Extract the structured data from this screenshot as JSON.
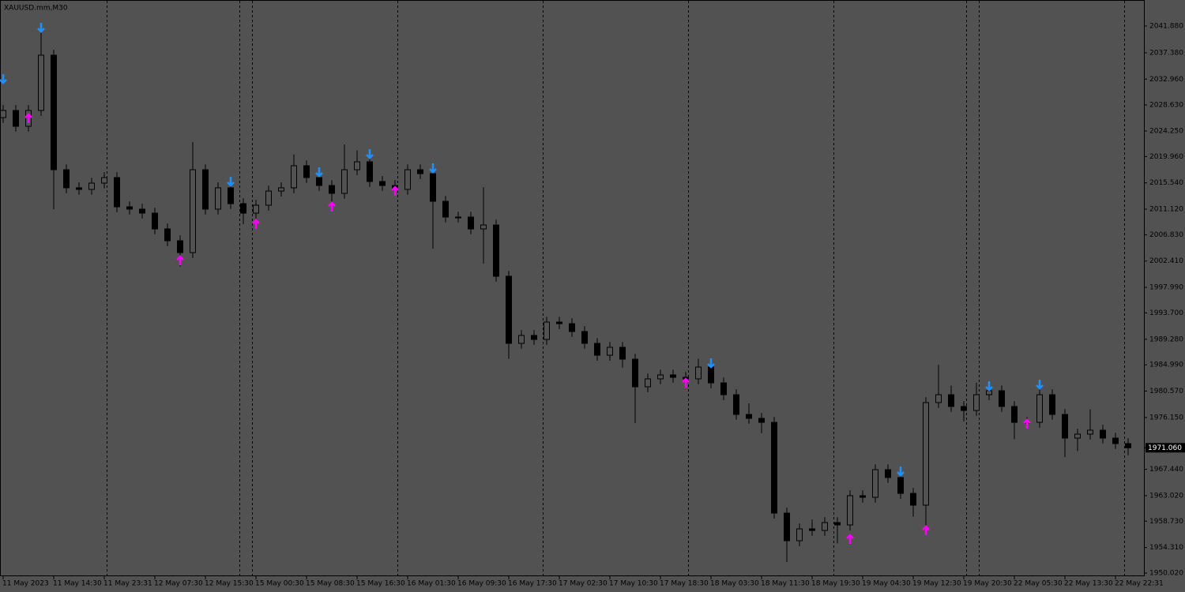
{
  "chart_data": {
    "type": "candlestick",
    "title": "XAUUSD.mm,M30",
    "categories": [
      "11 May 2023",
      null,
      null,
      null,
      "11 May 14:30",
      null,
      null,
      null,
      "11 May 23:31",
      null,
      null,
      null,
      "12 May 07:30",
      null,
      null,
      null,
      "12 May 15:30",
      null,
      null,
      null,
      "15 May 00:30",
      null,
      null,
      null,
      "15 May 08:30",
      null,
      null,
      null,
      "15 May 16:30",
      null,
      null,
      null,
      "16 May 01:30",
      null,
      null,
      null,
      "16 May 09:30",
      null,
      null,
      null,
      "16 May 17:30",
      null,
      null,
      null,
      "17 May 02:30",
      null,
      null,
      null,
      "17 May 10:30",
      null,
      null,
      null,
      "17 May 18:30",
      null,
      null,
      null,
      "18 May 03:30",
      null,
      null,
      null,
      "18 May 11:30",
      null,
      null,
      null,
      "18 May 19:30",
      null,
      null,
      null,
      "19 May 04:30",
      null,
      null,
      null,
      "19 May 12:30",
      null,
      null,
      null,
      "19 May 20:30",
      null,
      null,
      null,
      "22 May 05:30",
      null,
      null,
      null,
      "22 May 13:30",
      null,
      null,
      null,
      "22 May 22:31",
      null
    ],
    "open": [
      2026.5,
      2027.7,
      2025.04,
      2027.7,
      2036.98,
      2017.75,
      2014.71,
      2014.44,
      2015.5,
      2016.43,
      2011.52,
      2011.13,
      2010.46,
      2007.81,
      2005.82,
      2003.83,
      2017.75,
      2011.13,
      2014.71,
      2012.05,
      2010.46,
      2011.79,
      2014.17,
      2014.71,
      2018.42,
      2016.43,
      2015.1,
      2013.78,
      2017.75,
      2019.08,
      2015.77,
      2015.1,
      2014.44,
      2017.75,
      2017.09,
      2012.45,
      2009.8,
      2009.8,
      2007.81,
      2008.47,
      1999.86,
      1988.59,
      1989.92,
      1989.25,
      1992.17,
      1991.9,
      1990.58,
      1988.59,
      1986.6,
      1987.93,
      1985.94,
      1981.3,
      1982.63,
      1983.29,
      1982.89,
      1982.63,
      1984.61,
      1981.96,
      1979.97,
      1976.66,
      1976.0,
      1975.33,
      1960.09,
      1955.45,
      1957.44,
      1957.17,
      1958.5,
      1958.1,
      1963.01,
      1962.74,
      1967.38,
      1966.06,
      1963.4,
      1961.42,
      1978.65,
      1979.97,
      1977.99,
      1977.32,
      1979.97,
      1980.64,
      1977.99,
      1975.33,
      1975.33,
      1979.97,
      1976.66,
      1972.68,
      1973.35,
      1974.01,
      1972.68,
      1971.76
    ],
    "high": [
      2028.6,
      2028.6,
      2028.6,
      2041.3,
      2037.9,
      2018.65,
      2015.61,
      2016.4,
      2017.33,
      2017.33,
      2012.42,
      2012.03,
      2011.36,
      2008.71,
      2006.72,
      2022.4,
      2018.65,
      2015.61,
      2015.61,
      2012.95,
      2012.69,
      2015.07,
      2015.61,
      2020.3,
      2019.32,
      2017.33,
      2016.0,
      2022.0,
      2021.0,
      2019.98,
      2016.67,
      2016.0,
      2018.65,
      2018.65,
      2018.0,
      2013.35,
      2010.7,
      2010.7,
      2014.8,
      2009.37,
      2000.76,
      1990.82,
      1990.82,
      1993.07,
      1993.07,
      1992.8,
      1991.48,
      1989.49,
      1988.83,
      1988.83,
      1986.84,
      1983.53,
      1984.19,
      1984.19,
      1983.79,
      1986.0,
      1985.51,
      1982.86,
      1980.87,
      1978.5,
      1976.9,
      1976.23,
      1960.99,
      1958.34,
      1959.0,
      1959.4,
      1959.4,
      1963.91,
      1963.91,
      1968.28,
      1968.28,
      1966.96,
      1964.3,
      1979.55,
      1985.0,
      1981.5,
      1978.89,
      1982.0,
      1981.54,
      1981.54,
      1978.89,
      1976.23,
      1981.8,
      1980.87,
      1977.56,
      1974.25,
      1977.5,
      1974.91,
      1973.58,
      1972.66
    ],
    "low": [
      2025.6,
      2024.14,
      2024.14,
      2026.8,
      2011.1,
      2013.81,
      2013.54,
      2013.54,
      2014.6,
      2010.62,
      2010.23,
      2009.56,
      2006.91,
      2004.92,
      2001.5,
      2002.93,
      2010.23,
      2010.23,
      2011.15,
      2008.6,
      2009.56,
      2010.89,
      2013.27,
      2013.81,
      2015.53,
      2014.2,
      2012.4,
      2012.88,
      2016.85,
      2014.87,
      2014.2,
      2013.54,
      2013.54,
      2016.19,
      2004.5,
      2008.9,
      2008.9,
      2006.91,
      2002.0,
      1998.96,
      1986.0,
      1987.69,
      1988.35,
      1988.35,
      1991.0,
      1989.68,
      1987.69,
      1985.7,
      1985.7,
      1984.5,
      1975.2,
      1980.4,
      1981.73,
      1981.99,
      1981.73,
      1981.73,
      1981.06,
      1979.07,
      1975.76,
      1975.1,
      1973.5,
      1959.19,
      1951.9,
      1954.55,
      1956.27,
      1956.27,
      1955.0,
      1957.2,
      1961.84,
      1961.84,
      1965.16,
      1962.5,
      1959.5,
      1958.0,
      1977.75,
      1977.09,
      1975.5,
      1976.42,
      1979.07,
      1977.09,
      1972.5,
      1974.43,
      1974.43,
      1975.76,
      1969.5,
      1970.5,
      1972.45,
      1971.78,
      1970.86,
      1969.8
    ],
    "close": [
      2027.7,
      2025.04,
      2027.7,
      2036.98,
      2017.75,
      2014.71,
      2014.44,
      2015.5,
      2016.43,
      2011.52,
      2011.13,
      2010.46,
      2007.81,
      2005.82,
      2003.83,
      2017.75,
      2011.13,
      2014.71,
      2012.05,
      2010.46,
      2011.79,
      2014.17,
      2014.71,
      2018.42,
      2016.43,
      2015.1,
      2013.78,
      2017.75,
      2019.08,
      2015.77,
      2015.1,
      2014.44,
      2017.75,
      2017.09,
      2012.45,
      2009.8,
      2009.8,
      2007.81,
      2008.47,
      1999.86,
      1988.59,
      1989.92,
      1989.25,
      1992.17,
      1991.9,
      1990.58,
      1988.59,
      1986.6,
      1987.93,
      1985.94,
      1981.3,
      1982.63,
      1983.29,
      1982.89,
      1982.63,
      1984.61,
      1981.96,
      1979.97,
      1976.66,
      1976.0,
      1975.33,
      1960.09,
      1955.45,
      1957.44,
      1957.17,
      1958.5,
      1958.1,
      1963.01,
      1962.74,
      1967.38,
      1966.06,
      1963.4,
      1961.42,
      1978.65,
      1979.97,
      1977.99,
      1977.32,
      1979.97,
      1980.64,
      1977.99,
      1975.33,
      1975.33,
      1979.97,
      1976.66,
      1972.68,
      1973.35,
      1974.01,
      1972.68,
      1971.76,
      1971.06
    ],
    "last_price_label": "1971.060",
    "signals": [
      {
        "color": "#1e90ff",
        "direction": "down",
        "index": [
          0,
          3,
          18,
          25,
          29,
          34,
          56,
          71,
          78,
          82
        ],
        "values": [
          2032.99,
          2041.61,
          2015.77,
          2017.36,
          2020.4,
          2018.02,
          1985.28,
          1967.11,
          1981.43,
          1981.7
        ]
      },
      {
        "color": "#ff00ff",
        "direction": "up",
        "index": [
          2,
          14,
          20,
          26,
          31,
          54,
          67,
          73,
          81
        ],
        "values": [
          2026.37,
          2002.51,
          2008.61,
          2011.52,
          2014.17,
          1981.96,
          1955.72,
          1957.17,
          1975.07
        ]
      }
    ],
    "ylim": [
      1949.49,
      2046.25
    ],
    "yticks": [
      {
        "value": 1950.02,
        "label": "1950.020"
      },
      {
        "value": 1954.31,
        "label": "1954.310"
      },
      {
        "value": 1958.73,
        "label": "1958.730"
      },
      {
        "value": 1963.02,
        "label": "1963.020"
      },
      {
        "value": 1967.44,
        "label": "1967.440"
      },
      {
        "value": 1976.15,
        "label": "1976.150"
      },
      {
        "value": 1980.57,
        "label": "1980.570"
      },
      {
        "value": 1984.99,
        "label": "1984.990"
      },
      {
        "value": 1989.28,
        "label": "1989.280"
      },
      {
        "value": 1993.7,
        "label": "1993.700"
      },
      {
        "value": 1997.99,
        "label": "1997.990"
      },
      {
        "value": 2002.41,
        "label": "2002.410"
      },
      {
        "value": 2006.83,
        "label": "2006.830"
      },
      {
        "value": 2011.12,
        "label": "2011.120"
      },
      {
        "value": 2015.54,
        "label": "2015.540"
      },
      {
        "value": 2019.96,
        "label": "2019.960"
      },
      {
        "value": 2024.25,
        "label": "2024.250"
      },
      {
        "value": 2028.63,
        "label": "2028.630"
      },
      {
        "value": 2032.96,
        "label": "2032.960"
      },
      {
        "value": 2037.38,
        "label": "2037.380"
      },
      {
        "value": 2041.88,
        "label": "2041.880"
      }
    ],
    "grid": false,
    "bull_color": "#525252",
    "bear_color": "#000000"
  }
}
